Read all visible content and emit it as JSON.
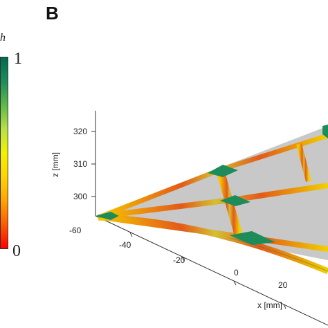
{
  "panel_label": "B",
  "colorbar": {
    "variable": "h",
    "max_label": "1",
    "min_label": "0",
    "colors": [
      "#ff0000",
      "#ff5a00",
      "#ffa500",
      "#ffd400",
      "#f2f200",
      "#b8e04a",
      "#5fb84a",
      "#1e8c5a",
      "#006b4f"
    ]
  },
  "chart_data": {
    "type": "surface",
    "title": "",
    "z_axis": {
      "label": "z [mm]",
      "ticks": [
        "320",
        "310",
        "300"
      ]
    },
    "y_axis": {
      "ticks": [
        "-60"
      ]
    },
    "x_axis": {
      "label": "x [mm]",
      "ticks": [
        "-40",
        "-20",
        "0",
        "20"
      ]
    },
    "surface_color": "#c8c8c8",
    "value_range": [
      0,
      1
    ]
  }
}
